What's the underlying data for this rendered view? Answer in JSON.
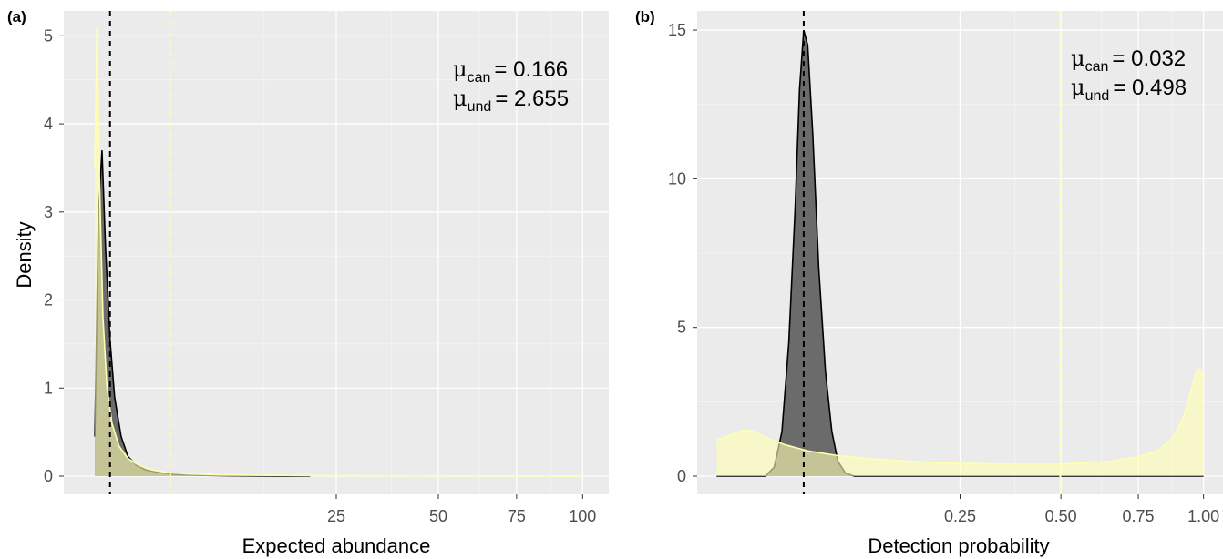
{
  "chart_data": [
    {
      "type": "area",
      "panel_label": "(a)",
      "xlabel": "Expected abundance",
      "ylabel": "Density",
      "x_scale": "sqrt",
      "xlim": [
        0,
        100
      ],
      "ylim": [
        0,
        5.2
      ],
      "x_ticks": [
        25,
        50,
        75,
        100
      ],
      "x_tick_labels": [
        "25",
        "50",
        "75",
        "100"
      ],
      "y_ticks": [
        0,
        1,
        2,
        3,
        4,
        5
      ],
      "y_tick_labels": [
        "0",
        "1",
        "2",
        "3",
        "4",
        "5"
      ],
      "grid": true,
      "annotation": {
        "line1_symbol": "μ",
        "line1_sub": "can",
        "line1_value": "= 0.166",
        "line2_symbol": "μ",
        "line2_sub": "und",
        "line2_value": "= 2.655"
      },
      "vlines": [
        {
          "name": "can",
          "x": 0.166,
          "color": "#000000",
          "style": "dashed"
        },
        {
          "name": "und",
          "x": 2.655,
          "color": "#ffffb3",
          "style": "dashed"
        }
      ],
      "series": [
        {
          "name": "can",
          "fill": "#555555",
          "line": "#000000",
          "x": [
            0.01,
            0.03,
            0.06,
            0.1,
            0.166,
            0.25,
            0.4,
            0.6,
            0.9,
            1.3,
            2,
            3,
            5,
            8,
            12,
            16,
            20
          ],
          "y": [
            0.45,
            3.0,
            3.7,
            2.6,
            1.55,
            0.9,
            0.45,
            0.22,
            0.12,
            0.07,
            0.04,
            0.02,
            0.01,
            0.005,
            0.002,
            0.001,
            0.0
          ]
        },
        {
          "name": "und",
          "fill": "#ffffb3",
          "line": "#ffffb3",
          "x": [
            0.01,
            0.02,
            0.04,
            0.07,
            0.12,
            0.2,
            0.35,
            0.6,
            1.0,
            1.6,
            2.5,
            4,
            7,
            12,
            20,
            35,
            60,
            100
          ],
          "y": [
            3.5,
            5.1,
            3.2,
            1.8,
            1.0,
            0.6,
            0.34,
            0.2,
            0.12,
            0.07,
            0.04,
            0.025,
            0.015,
            0.01,
            0.006,
            0.003,
            0.002,
            0.001
          ]
        }
      ]
    },
    {
      "type": "area",
      "panel_label": "(b)",
      "xlabel": "Detection probability",
      "ylabel": "",
      "x_scale": "sqrt",
      "xlim": [
        0,
        1
      ],
      "ylim": [
        0,
        15.4
      ],
      "x_ticks": [
        0.25,
        0.5,
        0.75,
        1.0
      ],
      "x_tick_labels": [
        "0.25",
        "0.50",
        "0.75",
        "1.00"
      ],
      "y_ticks": [
        0,
        5,
        10,
        15
      ],
      "y_tick_labels": [
        "0",
        "5",
        "10",
        "15"
      ],
      "grid": true,
      "annotation": {
        "line1_symbol": "μ",
        "line1_sub": "can",
        "line1_value": "= 0.032",
        "line2_symbol": "μ",
        "line2_sub": "und",
        "line2_value": "= 0.498"
      },
      "vlines": [
        {
          "name": "can",
          "x": 0.032,
          "color": "#000000",
          "style": "dashed"
        },
        {
          "name": "und",
          "x": 0.498,
          "color": "#ffffb3",
          "style": "dashed"
        }
      ],
      "series": [
        {
          "name": "can",
          "fill": "#555555",
          "line": "#000000",
          "x": [
            0.0,
            0.01,
            0.014,
            0.018,
            0.022,
            0.026,
            0.029,
            0.032,
            0.035,
            0.039,
            0.044,
            0.05,
            0.056,
            0.062,
            0.07,
            0.08,
            1.0
          ],
          "y": [
            0.0,
            0.0,
            0.3,
            1.5,
            4.5,
            9.0,
            13.0,
            15.0,
            14.5,
            11.5,
            7.0,
            3.5,
            1.5,
            0.5,
            0.1,
            0.0,
            0.0
          ]
        },
        {
          "name": "und",
          "fill": "#ffffb3",
          "line": "#ffffb3",
          "x": [
            0.0,
            0.001,
            0.003,
            0.006,
            0.01,
            0.02,
            0.035,
            0.06,
            0.1,
            0.2,
            0.35,
            0.5,
            0.65,
            0.75,
            0.82,
            0.88,
            0.92,
            0.95,
            0.97,
            0.985,
            1.0
          ],
          "y": [
            1.2,
            1.4,
            1.55,
            1.5,
            1.3,
            1.05,
            0.85,
            0.7,
            0.58,
            0.45,
            0.4,
            0.4,
            0.5,
            0.65,
            0.85,
            1.3,
            2.0,
            2.9,
            3.5,
            3.6,
            3.3
          ]
        }
      ]
    }
  ]
}
